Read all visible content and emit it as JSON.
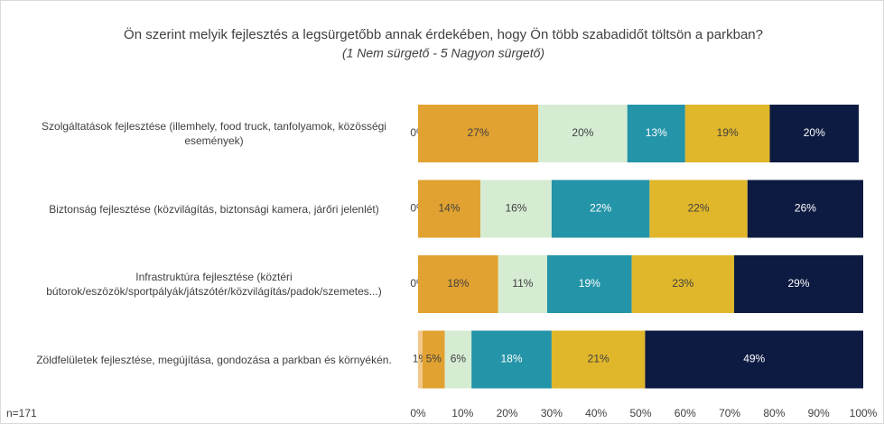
{
  "chart_data": {
    "type": "stacked_barh",
    "title": "Ön szerint melyik fejlesztés a legsürgetőbb annak érdekében, hogy Ön több szabadidőt töltsön a parkban?",
    "subtitle": "(1 Nem sürgető - 5 Nagyon sürgető)",
    "annotation": "n=171",
    "categories": [
      "Szolgáltatások fejlesztése (illemhely, food truck, tanfolyamok, közösségi események)",
      "Biztonság fejlesztése (közvilágítás, biztonsági kamera, járőri jelenlét)",
      "Infrastruktúra fejlesztése (köztéri bútorok/eszözök/sportpályák/játszótér/közvilágítás/padok/szemetes...)",
      "Zöldfelületek fejlesztése, megújítása, gondozása a parkban és környékén."
    ],
    "series": [
      {
        "color": "#f2c88a",
        "values": [
          0,
          0,
          0,
          1
        ],
        "value_labels": [
          "0%",
          "0%",
          "0%",
          "1%"
        ]
      },
      {
        "color": "#e2a231",
        "values": [
          27,
          14,
          18,
          5
        ],
        "value_labels": [
          "27%",
          "14%",
          "18%",
          "5%"
        ]
      },
      {
        "color": "#d5ecd3",
        "values": [
          20,
          16,
          11,
          6
        ],
        "value_labels": [
          "20%",
          "16%",
          "11%",
          "6%"
        ]
      },
      {
        "color": "#2494a8",
        "values": [
          13,
          22,
          19,
          18
        ],
        "value_labels": [
          "13%",
          "22%",
          "19%",
          "18%"
        ]
      },
      {
        "color": "#e0b72b",
        "values": [
          19,
          22,
          23,
          21
        ],
        "value_labels": [
          "19%",
          "22%",
          "23%",
          "21%"
        ]
      },
      {
        "color": "#0d1b42",
        "values": [
          20,
          26,
          29,
          49
        ],
        "value_labels": [
          "20%",
          "26%",
          "29%",
          "49%"
        ]
      }
    ],
    "xlim": [
      0,
      100
    ],
    "xticks": [
      {
        "value": 0,
        "label": "0%"
      },
      {
        "value": 10,
        "label": "10%"
      },
      {
        "value": 20,
        "label": "20%"
      },
      {
        "value": 30,
        "label": "30%"
      },
      {
        "value": 40,
        "label": "40%"
      },
      {
        "value": 50,
        "label": "50%"
      },
      {
        "value": 60,
        "label": "60%"
      },
      {
        "value": 70,
        "label": "70%"
      },
      {
        "value": 80,
        "label": "80%"
      },
      {
        "value": 90,
        "label": "90%"
      },
      {
        "value": 100,
        "label": "100%"
      }
    ],
    "grid": false
  }
}
